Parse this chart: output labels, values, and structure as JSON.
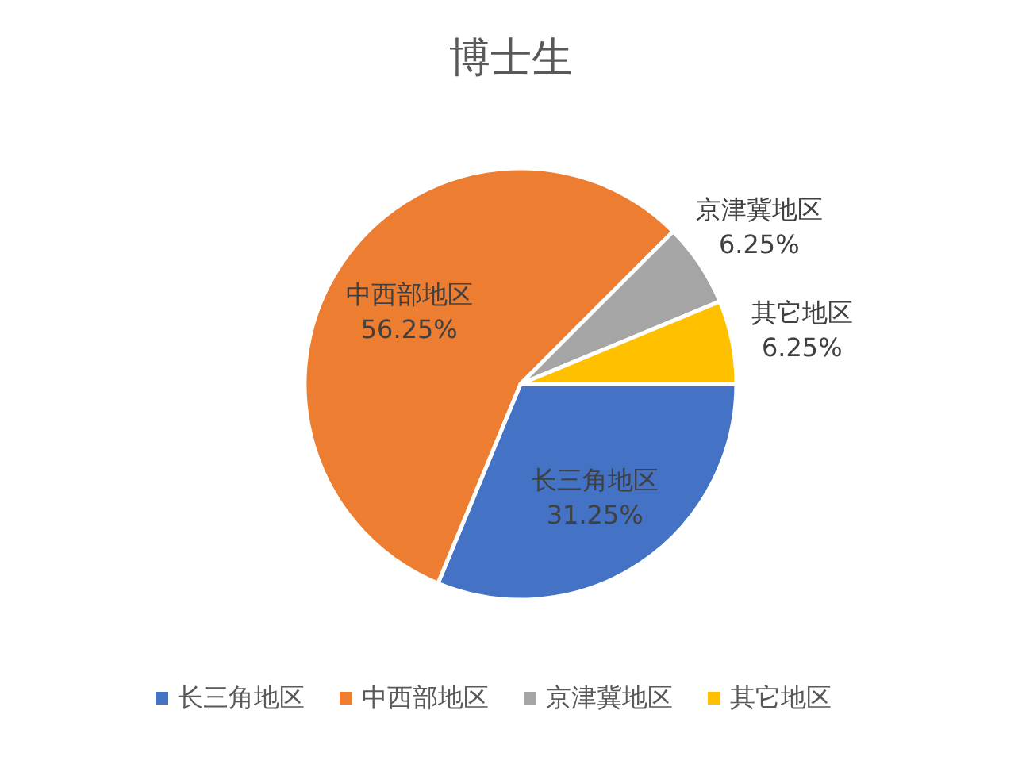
{
  "chart_data": {
    "type": "pie",
    "title": "博士生",
    "categories": [
      "长三角地区",
      "中西部地区",
      "京津冀地区",
      "其它地区"
    ],
    "values": [
      31.25,
      56.25,
      6.25,
      6.25
    ],
    "colors": [
      "#4472c4",
      "#ed7d31",
      "#a5a5a5",
      "#ffc000"
    ],
    "value_labels": [
      "31.25%",
      "56.25%",
      "6.25%",
      "6.25%"
    ],
    "legend": "bottom"
  }
}
